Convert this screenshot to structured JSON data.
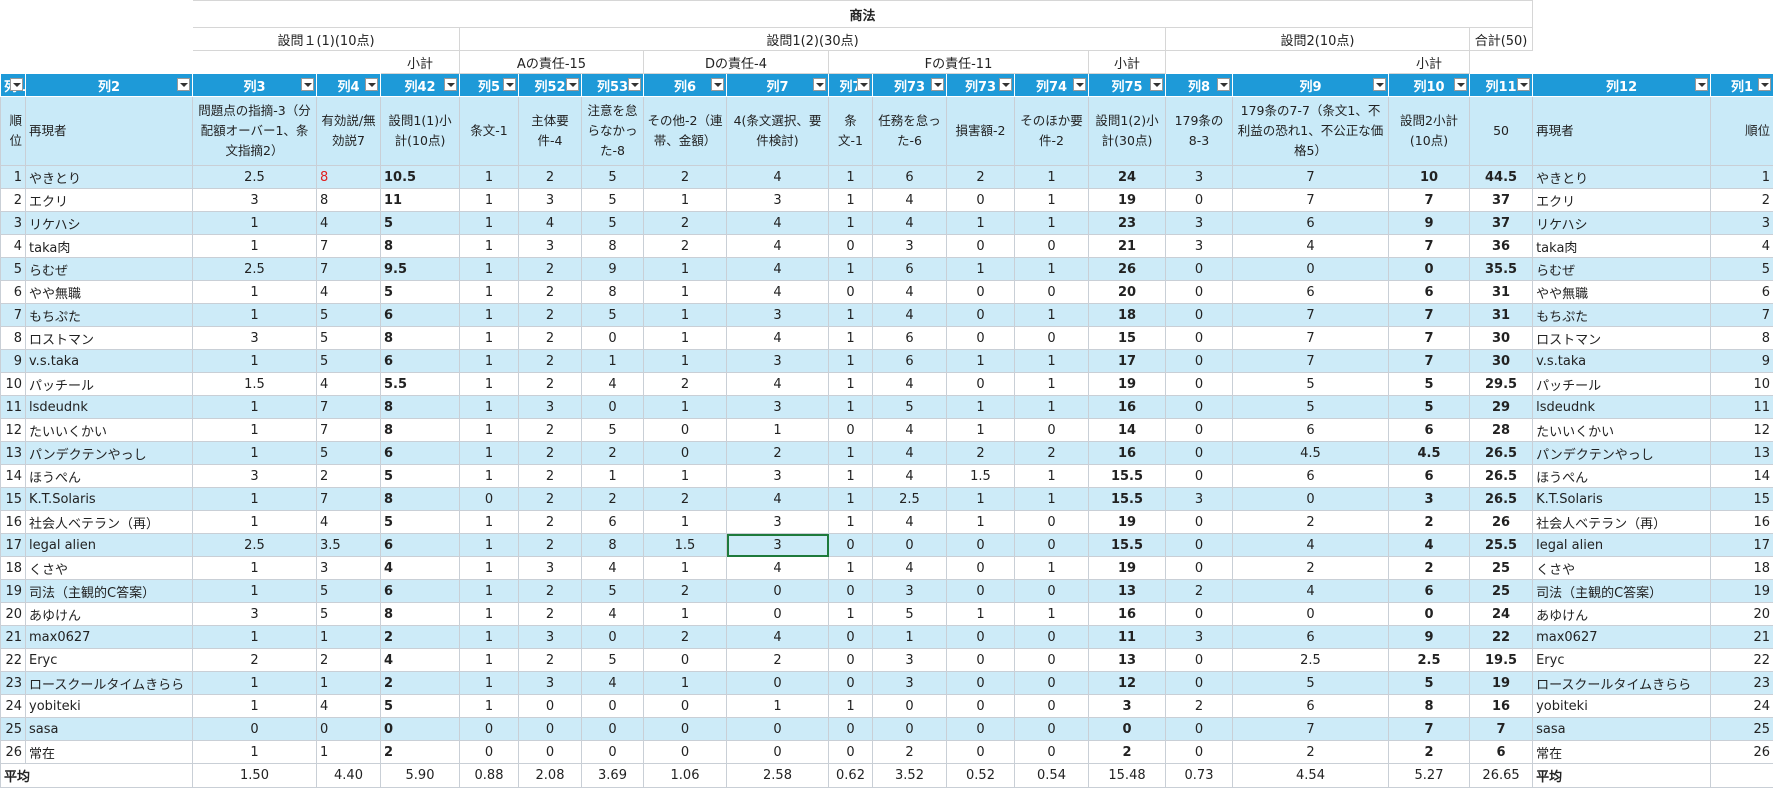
{
  "header": {
    "subject": "商法",
    "part1": "設問１(1)(10点)",
    "part2": "設問1(2)(30点)",
    "part3": "設問2(10点)",
    "total": "合計(50)",
    "subtotal1": "小計",
    "groupA": "Aの責任-15",
    "groupD": "Dの責任-4",
    "groupF": "Fの責任-11",
    "subtotal2": "小計",
    "subtotal3": "小計"
  },
  "columns": [
    {
      "name": "列1",
      "label": "順位"
    },
    {
      "name": "列2",
      "label": "再現者"
    },
    {
      "name": "列3",
      "label": "問題点の指摘-3（分配額オーバー1、条文指摘2）"
    },
    {
      "name": "列4",
      "label": "有効説/無効説7"
    },
    {
      "name": "列42",
      "label": "設問1(1)小計(10点)"
    },
    {
      "name": "列5",
      "label": "条文-1"
    },
    {
      "name": "列52",
      "label": "主体要件-4"
    },
    {
      "name": "列53",
      "label": "注意を怠らなかった-8"
    },
    {
      "name": "列6",
      "label": "その他-2（連帯、金額）"
    },
    {
      "name": "列7",
      "label": "4(条文選択、要件検討)"
    },
    {
      "name": "列7",
      "label": "条文-1"
    },
    {
      "name": "列73",
      "label": "任務を怠った-6"
    },
    {
      "name": "列73",
      "label": "損害額-2"
    },
    {
      "name": "列74",
      "label": "そのほか要件-2"
    },
    {
      "name": "列75",
      "label": "設問1(2)小計(30点)"
    },
    {
      "name": "列8",
      "label": "179条の8-3"
    },
    {
      "name": "列9",
      "label": "179条の7-7（条文1、不利益の恐れ1、不公正な価格5）"
    },
    {
      "name": "列10",
      "label": "設問2小計(10点)"
    },
    {
      "name": "列11",
      "label": "50"
    },
    {
      "name": "列12",
      "label": "再現者"
    },
    {
      "name": "列1",
      "label": "順位"
    }
  ],
  "rows": [
    [
      1,
      "やきとり",
      2.5,
      8,
      10.5,
      1,
      2,
      5,
      2,
      4,
      1,
      6,
      2,
      1,
      24,
      3,
      7,
      10,
      44.5
    ],
    [
      2,
      "エクリ",
      3,
      8,
      11,
      1,
      3,
      5,
      1,
      3,
      1,
      4,
      0,
      1,
      19,
      0,
      7,
      7,
      37
    ],
    [
      3,
      "リケハシ",
      1,
      4,
      5,
      1,
      4,
      5,
      2,
      4,
      1,
      4,
      1,
      1,
      23,
      3,
      6,
      9,
      37
    ],
    [
      4,
      "taka肉",
      1,
      7,
      8,
      1,
      3,
      8,
      2,
      4,
      0,
      3,
      0,
      0,
      21,
      3,
      4,
      7,
      36
    ],
    [
      5,
      "らむぜ",
      2.5,
      7,
      9.5,
      1,
      2,
      9,
      1,
      4,
      1,
      6,
      1,
      1,
      26,
      0,
      0,
      0,
      35.5
    ],
    [
      6,
      "やや無職",
      1,
      4,
      5,
      1,
      2,
      8,
      1,
      4,
      0,
      4,
      0,
      0,
      20,
      0,
      6,
      6,
      31
    ],
    [
      7,
      "もちぷた",
      1,
      5,
      6,
      1,
      2,
      5,
      1,
      3,
      1,
      4,
      0,
      1,
      18,
      0,
      7,
      7,
      31
    ],
    [
      8,
      "ロストマン",
      3,
      5,
      8,
      1,
      2,
      0,
      1,
      4,
      1,
      6,
      0,
      0,
      15,
      0,
      7,
      7,
      30
    ],
    [
      9,
      "v.s.taka",
      1,
      5,
      6,
      1,
      2,
      1,
      1,
      3,
      1,
      6,
      1,
      1,
      17,
      0,
      7,
      7,
      30
    ],
    [
      10,
      "パッチール",
      1.5,
      4,
      5.5,
      1,
      2,
      4,
      2,
      4,
      1,
      4,
      0,
      1,
      19,
      0,
      5,
      5,
      29.5
    ],
    [
      11,
      "lsdeudnk",
      1,
      7,
      8,
      1,
      3,
      0,
      1,
      3,
      1,
      5,
      1,
      1,
      16,
      0,
      5,
      5,
      29
    ],
    [
      12,
      "たいいくかい",
      1,
      7,
      8,
      1,
      2,
      5,
      0,
      1,
      0,
      4,
      1,
      0,
      14,
      0,
      6,
      6,
      28
    ],
    [
      13,
      "パンデクテンやっし",
      1,
      5,
      6,
      1,
      2,
      2,
      0,
      2,
      1,
      4,
      2,
      2,
      16,
      0,
      4.5,
      4.5,
      26.5
    ],
    [
      14,
      "ほうぺん",
      3,
      2,
      5,
      1,
      2,
      1,
      1,
      3,
      1,
      4,
      1.5,
      1,
      15.5,
      0,
      6,
      6,
      26.5
    ],
    [
      15,
      "K.T.Solaris",
      1,
      7,
      8,
      0,
      2,
      2,
      2,
      4,
      1,
      2.5,
      1,
      1,
      15.5,
      3,
      0,
      3,
      26.5
    ],
    [
      16,
      "社会人ベテラン（再）",
      1,
      4,
      5,
      1,
      2,
      6,
      1,
      3,
      1,
      4,
      1,
      0,
      19,
      0,
      2,
      2,
      26
    ],
    [
      17,
      "legal alien",
      2.5,
      3.5,
      6,
      1,
      2,
      8,
      1.5,
      3,
      0,
      0,
      0,
      0,
      15.5,
      0,
      4,
      4,
      25.5
    ],
    [
      18,
      "くさや",
      1,
      3,
      4,
      1,
      3,
      4,
      1,
      4,
      1,
      4,
      0,
      1,
      19,
      0,
      2,
      2,
      25
    ],
    [
      19,
      "司法（主観的C答案）",
      1,
      5,
      6,
      1,
      2,
      5,
      2,
      0,
      0,
      3,
      0,
      0,
      13,
      2,
      4,
      6,
      25
    ],
    [
      20,
      "あゆけん",
      3,
      5,
      8,
      1,
      2,
      4,
      1,
      0,
      1,
      5,
      1,
      1,
      16,
      0,
      0,
      0,
      24
    ],
    [
      21,
      "max0627",
      1,
      1,
      2,
      1,
      3,
      0,
      2,
      4,
      0,
      1,
      0,
      0,
      11,
      3,
      6,
      9,
      22
    ],
    [
      22,
      "Eryc",
      2,
      2,
      4,
      1,
      2,
      5,
      0,
      2,
      0,
      3,
      0,
      0,
      13,
      0,
      2.5,
      2.5,
      19.5
    ],
    [
      23,
      "ロースクールタイムきらら",
      1,
      1,
      2,
      1,
      3,
      4,
      1,
      0,
      0,
      3,
      0,
      0,
      12,
      0,
      5,
      5,
      19
    ],
    [
      24,
      "yobiteki",
      1,
      4,
      5,
      1,
      0,
      0,
      0,
      1,
      1,
      0,
      0,
      0,
      3,
      2,
      6,
      8,
      16
    ],
    [
      25,
      "sasa",
      0,
      0,
      0,
      0,
      0,
      0,
      0,
      0,
      0,
      0,
      0,
      0,
      0,
      0,
      7,
      7,
      7
    ],
    [
      26,
      "常在",
      1,
      1,
      2,
      0,
      0,
      0,
      0,
      0,
      0,
      2,
      0,
      0,
      2,
      0,
      2,
      2,
      6
    ]
  ],
  "average": {
    "label": "平均",
    "values": [
      "1.50",
      "4.40",
      "5.90",
      "0.88",
      "2.08",
      "3.69",
      "1.06",
      "2.58",
      "0.62",
      "3.52",
      "0.52",
      "0.54",
      "15.48",
      "0.73",
      "4.54",
      "5.27",
      "26.65"
    ]
  }
}
